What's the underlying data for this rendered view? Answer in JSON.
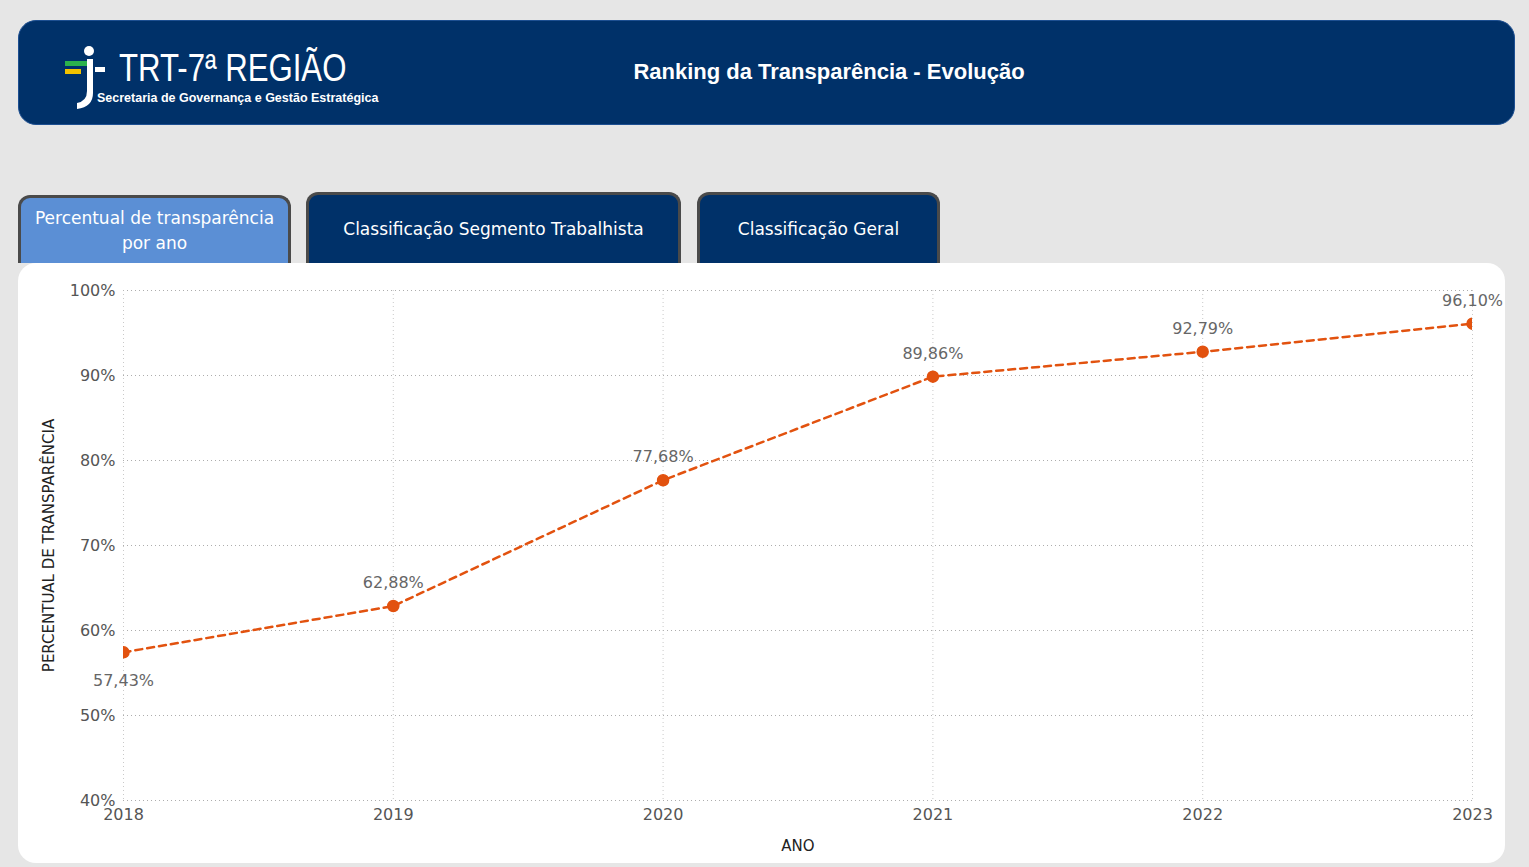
{
  "header": {
    "organization": "TRT-7ª REGIÃO",
    "department": "Secretaria de Governança e Gestão Estratégica",
    "title": "Ranking da Transparência - Evolução"
  },
  "tabs": [
    "Percentual de transparência por ano",
    "Classificação Segmento Trabalhista",
    "Classificação Geral"
  ],
  "chart_data": {
    "type": "line",
    "x_label": "ANO",
    "y_label": "PERCENTUAL DE TRANSPARÊNCIA",
    "x": [
      2018,
      2019,
      2020,
      2021,
      2022,
      2023
    ],
    "values": [
      57.43,
      62.88,
      77.68,
      89.86,
      92.79,
      96.1
    ],
    "value_labels": [
      "57,43%",
      "62,88%",
      "77,68%",
      "89,86%",
      "92,79%",
      "96,10%"
    ],
    "color": "#e2520f",
    "marker": "circle",
    "line_style": "dashed",
    "data_labels": true,
    "grid": true,
    "xlim": [
      2018,
      2023
    ],
    "xticks": [
      2018,
      2019,
      2020,
      2021,
      2022,
      2023
    ],
    "ylim": [
      40,
      100
    ],
    "yticks": [
      {
        "value": 40,
        "label": "40%"
      },
      {
        "value": 50,
        "label": "50%"
      },
      {
        "value": 60,
        "label": "60%"
      },
      {
        "value": 70,
        "label": "70%"
      },
      {
        "value": 80,
        "label": "80%"
      },
      {
        "value": 90,
        "label": "90%"
      },
      {
        "value": 100,
        "label": "100%"
      }
    ]
  }
}
